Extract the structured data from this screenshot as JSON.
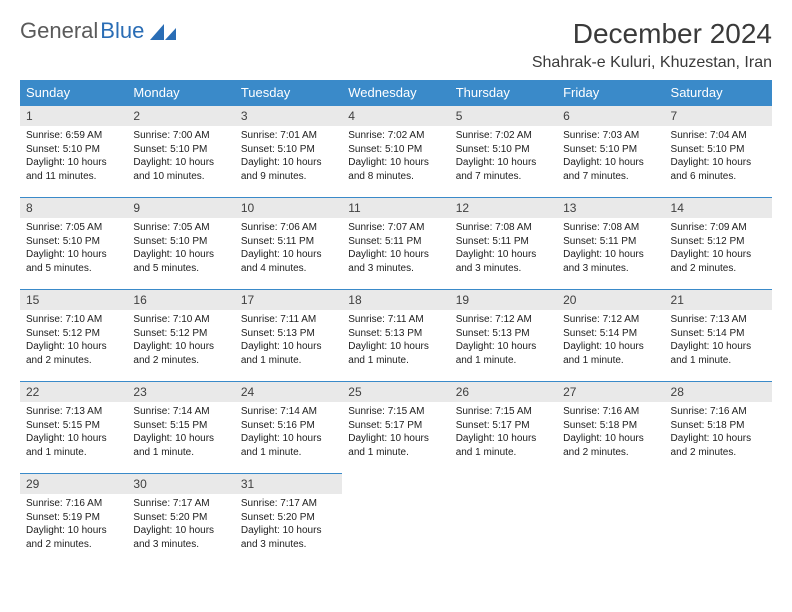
{
  "brand": {
    "part1": "General",
    "part2": "Blue"
  },
  "title": "December 2024",
  "location": "Shahrak-e Kuluri, Khuzestan, Iran",
  "colors": {
    "header_bg": "#3a8ac9",
    "header_text": "#ffffff",
    "daynum_bg": "#e9e9e9",
    "row_border": "#3a8ac9",
    "brand_gray": "#5a5a5a",
    "brand_blue": "#2a6db5"
  },
  "weekdays": [
    "Sunday",
    "Monday",
    "Tuesday",
    "Wednesday",
    "Thursday",
    "Friday",
    "Saturday"
  ],
  "weeks": [
    [
      {
        "n": "1",
        "sr": "6:59 AM",
        "ss": "5:10 PM",
        "dl": "10 hours and 11 minutes."
      },
      {
        "n": "2",
        "sr": "7:00 AM",
        "ss": "5:10 PM",
        "dl": "10 hours and 10 minutes."
      },
      {
        "n": "3",
        "sr": "7:01 AM",
        "ss": "5:10 PM",
        "dl": "10 hours and 9 minutes."
      },
      {
        "n": "4",
        "sr": "7:02 AM",
        "ss": "5:10 PM",
        "dl": "10 hours and 8 minutes."
      },
      {
        "n": "5",
        "sr": "7:02 AM",
        "ss": "5:10 PM",
        "dl": "10 hours and 7 minutes."
      },
      {
        "n": "6",
        "sr": "7:03 AM",
        "ss": "5:10 PM",
        "dl": "10 hours and 7 minutes."
      },
      {
        "n": "7",
        "sr": "7:04 AM",
        "ss": "5:10 PM",
        "dl": "10 hours and 6 minutes."
      }
    ],
    [
      {
        "n": "8",
        "sr": "7:05 AM",
        "ss": "5:10 PM",
        "dl": "10 hours and 5 minutes."
      },
      {
        "n": "9",
        "sr": "7:05 AM",
        "ss": "5:10 PM",
        "dl": "10 hours and 5 minutes."
      },
      {
        "n": "10",
        "sr": "7:06 AM",
        "ss": "5:11 PM",
        "dl": "10 hours and 4 minutes."
      },
      {
        "n": "11",
        "sr": "7:07 AM",
        "ss": "5:11 PM",
        "dl": "10 hours and 3 minutes."
      },
      {
        "n": "12",
        "sr": "7:08 AM",
        "ss": "5:11 PM",
        "dl": "10 hours and 3 minutes."
      },
      {
        "n": "13",
        "sr": "7:08 AM",
        "ss": "5:11 PM",
        "dl": "10 hours and 3 minutes."
      },
      {
        "n": "14",
        "sr": "7:09 AM",
        "ss": "5:12 PM",
        "dl": "10 hours and 2 minutes."
      }
    ],
    [
      {
        "n": "15",
        "sr": "7:10 AM",
        "ss": "5:12 PM",
        "dl": "10 hours and 2 minutes."
      },
      {
        "n": "16",
        "sr": "7:10 AM",
        "ss": "5:12 PM",
        "dl": "10 hours and 2 minutes."
      },
      {
        "n": "17",
        "sr": "7:11 AM",
        "ss": "5:13 PM",
        "dl": "10 hours and 1 minute."
      },
      {
        "n": "18",
        "sr": "7:11 AM",
        "ss": "5:13 PM",
        "dl": "10 hours and 1 minute."
      },
      {
        "n": "19",
        "sr": "7:12 AM",
        "ss": "5:13 PM",
        "dl": "10 hours and 1 minute."
      },
      {
        "n": "20",
        "sr": "7:12 AM",
        "ss": "5:14 PM",
        "dl": "10 hours and 1 minute."
      },
      {
        "n": "21",
        "sr": "7:13 AM",
        "ss": "5:14 PM",
        "dl": "10 hours and 1 minute."
      }
    ],
    [
      {
        "n": "22",
        "sr": "7:13 AM",
        "ss": "5:15 PM",
        "dl": "10 hours and 1 minute."
      },
      {
        "n": "23",
        "sr": "7:14 AM",
        "ss": "5:15 PM",
        "dl": "10 hours and 1 minute."
      },
      {
        "n": "24",
        "sr": "7:14 AM",
        "ss": "5:16 PM",
        "dl": "10 hours and 1 minute."
      },
      {
        "n": "25",
        "sr": "7:15 AM",
        "ss": "5:17 PM",
        "dl": "10 hours and 1 minute."
      },
      {
        "n": "26",
        "sr": "7:15 AM",
        "ss": "5:17 PM",
        "dl": "10 hours and 1 minute."
      },
      {
        "n": "27",
        "sr": "7:16 AM",
        "ss": "5:18 PM",
        "dl": "10 hours and 2 minutes."
      },
      {
        "n": "28",
        "sr": "7:16 AM",
        "ss": "5:18 PM",
        "dl": "10 hours and 2 minutes."
      }
    ],
    [
      {
        "n": "29",
        "sr": "7:16 AM",
        "ss": "5:19 PM",
        "dl": "10 hours and 2 minutes."
      },
      {
        "n": "30",
        "sr": "7:17 AM",
        "ss": "5:20 PM",
        "dl": "10 hours and 3 minutes."
      },
      {
        "n": "31",
        "sr": "7:17 AM",
        "ss": "5:20 PM",
        "dl": "10 hours and 3 minutes."
      },
      null,
      null,
      null,
      null
    ]
  ],
  "labels": {
    "sunrise": "Sunrise: ",
    "sunset": "Sunset: ",
    "daylight": "Daylight: "
  }
}
